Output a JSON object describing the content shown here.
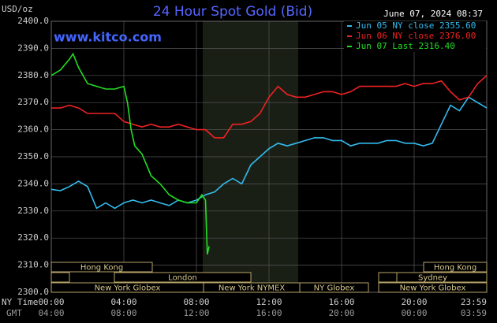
{
  "chart_data": {
    "type": "line",
    "title": "24 Hour Spot Gold (Bid)",
    "unit_label": "USD/oz",
    "timestamp": "June 07, 2024 08:37",
    "watermark": "www.kitco.com",
    "x_labels": [
      "NY Time",
      "GMT"
    ],
    "xlim": [
      0,
      24
    ],
    "xticks": [
      {
        "value": 0,
        "label": "00:00"
      },
      {
        "value": 4,
        "label": "04:00"
      },
      {
        "value": 8,
        "label": "08:00"
      },
      {
        "value": 12,
        "label": "12:00"
      },
      {
        "value": 16,
        "label": "16:00"
      },
      {
        "value": 20,
        "label": "20:00"
      },
      {
        "value": 24,
        "label": "23:59"
      }
    ],
    "gmt_labels": [
      "04:00",
      "08:00",
      "12:00",
      "16:00",
      "20:00",
      "00:00",
      "03:59"
    ],
    "ylim": [
      2300,
      2400
    ],
    "yticks": [
      {
        "value": 2300,
        "label": "2300.0"
      },
      {
        "value": 2310,
        "label": "2310.0"
      },
      {
        "value": 2320,
        "label": "2320.0"
      },
      {
        "value": 2330,
        "label": "2330.0"
      },
      {
        "value": 2340,
        "label": "2340.0"
      },
      {
        "value": 2350,
        "label": "2350.0"
      },
      {
        "value": 2360,
        "label": "2360.0"
      },
      {
        "value": 2370,
        "label": "2370.0"
      },
      {
        "value": 2380,
        "label": "2380.0"
      },
      {
        "value": 2390,
        "label": "2390.0"
      },
      {
        "value": 2400,
        "label": "2400.0"
      }
    ],
    "grid": true,
    "sessions": [
      "Hong Kong",
      "London",
      "New York Globex",
      "New York NYMEX",
      "NY Globex",
      "Sydney",
      "Hong Kong",
      "New York Globex"
    ],
    "series": [
      {
        "name": "Jun 05 NY close 2355.60",
        "color": "#33bbee",
        "x": [
          0,
          0.5,
          1,
          1.5,
          2,
          2.5,
          3,
          3.5,
          4,
          4.5,
          5,
          5.5,
          6,
          6.5,
          7,
          7.5,
          8,
          8.5,
          9,
          9.5,
          10,
          10.5,
          11,
          11.5,
          12,
          12.5,
          13,
          13.5,
          14,
          14.5,
          15,
          15.5,
          16,
          16.5,
          17,
          17.5,
          18,
          18.5,
          19,
          19.5,
          20,
          20.5,
          21,
          21.5,
          22,
          22.5,
          23,
          23.5,
          24
        ],
        "values": [
          2338,
          2337.5,
          2339,
          2341,
          2339,
          2331,
          2333,
          2331,
          2333,
          2334,
          2333,
          2334,
          2333,
          2332,
          2334,
          2333,
          2334,
          2336,
          2337,
          2340,
          2342,
          2340,
          2347,
          2350,
          2353,
          2355,
          2354,
          2355,
          2356,
          2357,
          2357,
          2356,
          2356,
          2354,
          2355,
          2355,
          2355,
          2356,
          2356,
          2355,
          2355,
          2354,
          2355,
          2362,
          2369,
          2367,
          2372,
          2370,
          2368
        ]
      },
      {
        "name": "Jun 06 NY close 2376.00",
        "color": "#ee2222",
        "x": [
          0,
          0.5,
          1,
          1.5,
          2,
          2.5,
          3,
          3.5,
          4,
          4.5,
          5,
          5.5,
          6,
          6.5,
          7,
          7.5,
          8,
          8.5,
          9,
          9.5,
          10,
          10.5,
          11,
          11.5,
          12,
          12.5,
          13,
          13.5,
          14,
          14.5,
          15,
          15.5,
          16,
          16.5,
          17,
          17.5,
          18,
          18.5,
          19,
          19.5,
          20,
          20.5,
          21,
          21.5,
          22,
          22.5,
          23,
          23.5,
          24
        ],
        "values": [
          2368,
          2368,
          2369,
          2368,
          2366,
          2366,
          2366,
          2366,
          2363,
          2362,
          2361,
          2362,
          2361,
          2361,
          2362,
          2361,
          2360,
          2360,
          2357,
          2357,
          2362,
          2362,
          2363,
          2366,
          2372,
          2376,
          2373,
          2372,
          2372,
          2373,
          2374,
          2374,
          2373,
          2374,
          2376,
          2376,
          2376,
          2376,
          2376,
          2377,
          2376,
          2377,
          2377,
          2378,
          2374,
          2371,
          2372,
          2377,
          2380
        ]
      },
      {
        "name": "Jun 07 Last 2316.40",
        "color": "#22dd22",
        "x": [
          0,
          0.5,
          1,
          1.2,
          1.5,
          2,
          2.5,
          3,
          3.5,
          4,
          4.2,
          4.4,
          4.6,
          5,
          5.5,
          6,
          6.5,
          7,
          7.5,
          8,
          8.3,
          8.5,
          8.6,
          8.7
        ],
        "values": [
          2380,
          2382,
          2386,
          2388,
          2383,
          2377,
          2376,
          2375,
          2375,
          2376,
          2370,
          2360,
          2354,
          2351,
          2343,
          2340,
          2336,
          2334,
          2333,
          2333,
          2336,
          2334,
          2314,
          2317
        ]
      }
    ]
  }
}
